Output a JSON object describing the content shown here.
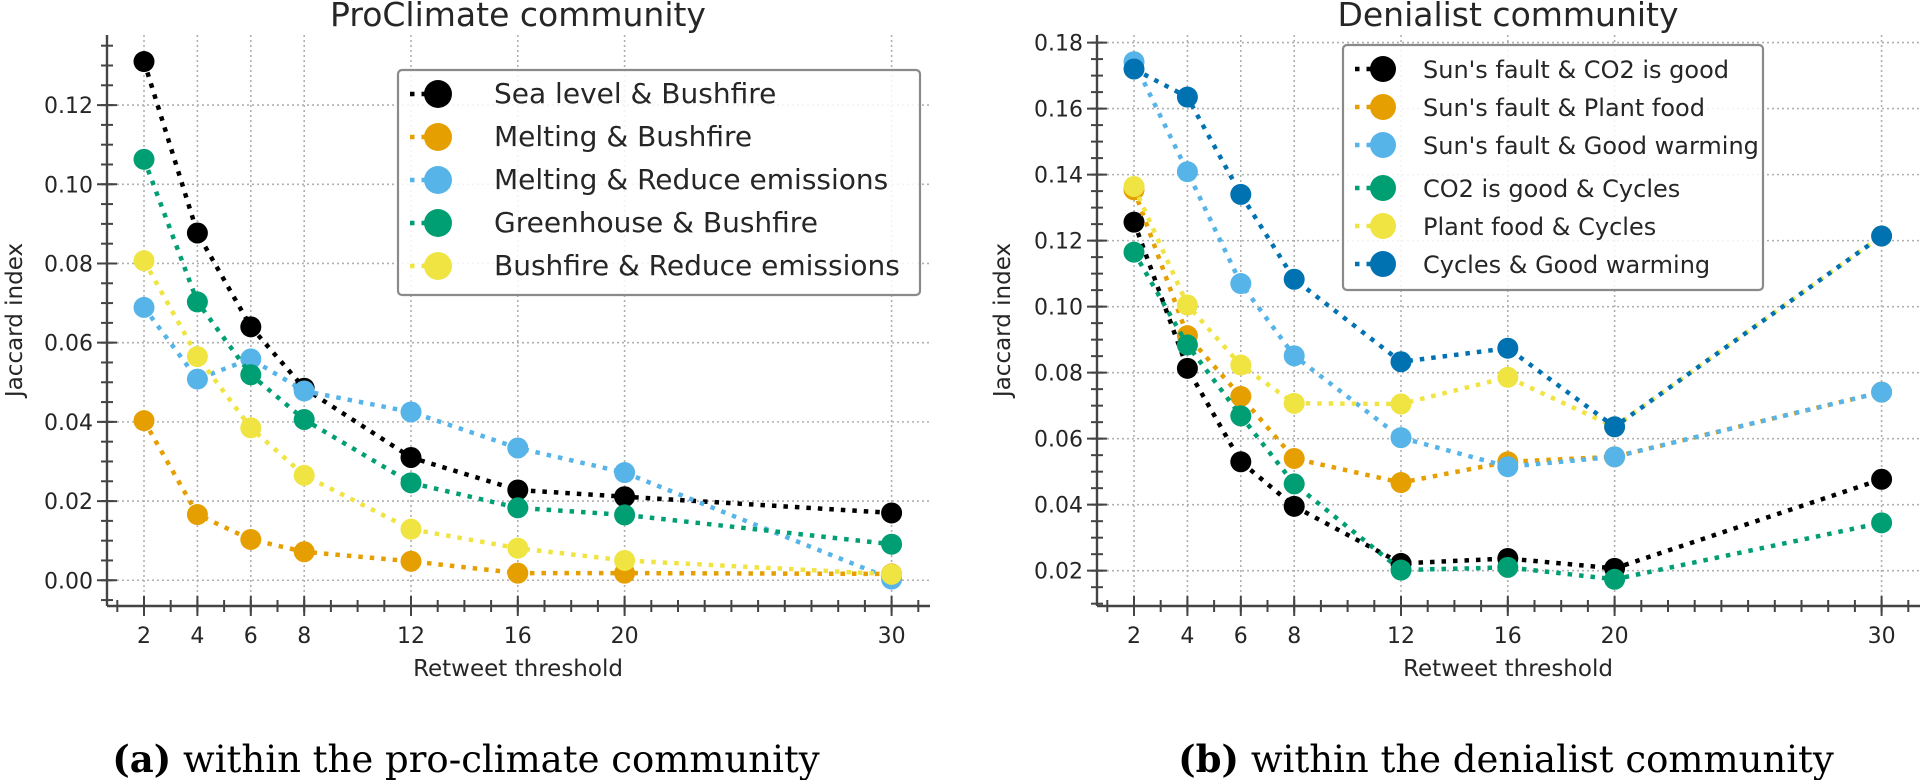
{
  "chart_data": [
    {
      "type": "line",
      "title": "ProClimate community",
      "xlabel": "Retweet threshold",
      "ylabel": "Jaccard index",
      "caption_label": "(a)",
      "caption_text": " within the pro-climate community",
      "x": [
        2,
        4,
        6,
        8,
        12,
        16,
        20,
        30
      ],
      "xticks": [
        2,
        4,
        6,
        8,
        12,
        16,
        20,
        30
      ],
      "yticks": [
        0.0,
        0.02,
        0.04,
        0.06,
        0.08,
        0.1,
        0.12
      ],
      "ytick_labels": [
        "0.00",
        "0.02",
        "0.04",
        "0.06",
        "0.08",
        "0.10",
        "0.12"
      ],
      "xlim": [
        0.6,
        31.6
      ],
      "ylim": [
        -0.0065,
        0.1377
      ],
      "grid": true,
      "legend_position": "top-right",
      "series": [
        {
          "name": "Sea level & Bushfire",
          "color": "#000000",
          "values": [
            0.131,
            0.0877,
            0.064,
            0.0485,
            0.031,
            0.0228,
            0.0211,
            0.017
          ]
        },
        {
          "name": "Melting & Bushfire",
          "color": "#E69F00",
          "values": [
            0.0403,
            0.0166,
            0.0103,
            0.0072,
            0.0048,
            0.0018,
            0.0018,
            0.0016
          ]
        },
        {
          "name": "Melting & Reduce emissions",
          "color": "#56B4E9",
          "values": [
            0.0689,
            0.0508,
            0.0559,
            0.0478,
            0.0425,
            0.0334,
            0.0272,
            0.0003
          ]
        },
        {
          "name": "Greenhouse & Bushfire",
          "color": "#009E73",
          "values": [
            0.1063,
            0.0703,
            0.0519,
            0.0406,
            0.0246,
            0.0183,
            0.0165,
            0.0091
          ]
        },
        {
          "name": "Bushfire & Reduce emissions",
          "color": "#F0E442",
          "values": [
            0.0807,
            0.0565,
            0.0385,
            0.0265,
            0.0129,
            0.0081,
            0.005,
            0.0015
          ]
        }
      ]
    },
    {
      "type": "line",
      "title": "Denialist community",
      "xlabel": "Retweet threshold",
      "ylabel": "Jaccard index",
      "caption_label": "(b)",
      "caption_text": " within the denialist community",
      "x": [
        2,
        4,
        6,
        8,
        12,
        16,
        20,
        30
      ],
      "xticks": [
        2,
        4,
        6,
        8,
        12,
        16,
        20,
        30
      ],
      "yticks": [
        0.02,
        0.04,
        0.06,
        0.08,
        0.1,
        0.12,
        0.14,
        0.16,
        0.18
      ],
      "ytick_labels": [
        "0.02",
        "0.04",
        "0.06",
        "0.08",
        "0.10",
        "0.12",
        "0.14",
        "0.16",
        "0.18"
      ],
      "xlim": [
        0.6,
        31.6
      ],
      "ylim": [
        0.0093,
        0.1823
      ],
      "grid": true,
      "legend_position": "top-right",
      "series": [
        {
          "name": "Sun's fault & CO2 is good",
          "color": "#000000",
          "values": [
            0.1256,
            0.0813,
            0.053,
            0.0395,
            0.0222,
            0.0237,
            0.0207,
            0.0477
          ]
        },
        {
          "name": "Sun's fault & Plant food",
          "color": "#E69F00",
          "values": [
            0.1354,
            0.0912,
            0.0728,
            0.054,
            0.0467,
            0.053,
            0.0545,
            0.0741
          ]
        },
        {
          "name": "Sun's fault & Good warming",
          "color": "#56B4E9",
          "values": [
            0.1742,
            0.1409,
            0.107,
            0.0851,
            0.0603,
            0.0515,
            0.0545,
            0.0741
          ]
        },
        {
          "name": "CO2 is good & Cycles",
          "color": "#009E73",
          "values": [
            0.1165,
            0.0884,
            0.0669,
            0.0463,
            0.0202,
            0.021,
            0.0174,
            0.0345
          ]
        },
        {
          "name": "Plant food & Cycles",
          "color": "#F0E442",
          "values": [
            0.1364,
            0.1005,
            0.0823,
            0.0707,
            0.0705,
            0.0786,
            0.0636,
            0.1214
          ]
        },
        {
          "name": "Cycles & Good warming",
          "color": "#0072B2",
          "values": [
            0.172,
            0.1635,
            0.134,
            0.1083,
            0.0833,
            0.0874,
            0.0636,
            0.1214
          ]
        }
      ]
    }
  ]
}
